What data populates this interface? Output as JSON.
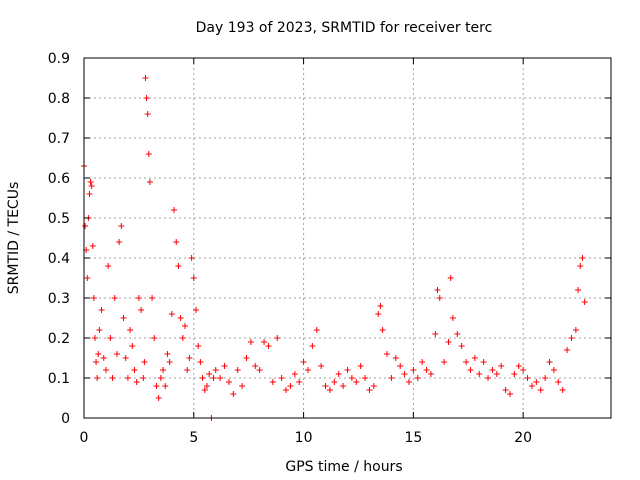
{
  "chart_data": {
    "type": "scatter",
    "title": "Day 193 of 2023, SRMTID for receiver terc",
    "xlabel": "GPS time / hours",
    "ylabel": "SRMTID / TECUs",
    "xlim": [
      0,
      24
    ],
    "ylim": [
      0,
      0.9
    ],
    "xticks": [
      0,
      5,
      10,
      15,
      20
    ],
    "yticks": [
      0,
      0.1,
      0.2,
      0.3,
      0.4,
      0.5,
      0.6,
      0.7,
      0.8,
      0.9
    ],
    "xtick_labels": [
      "0",
      "5",
      "10",
      "15",
      "20"
    ],
    "ytick_labels": [
      "0",
      "0.1",
      "0.2",
      "0.3",
      "0.4",
      "0.5",
      "0.6",
      "0.7",
      "0.8",
      "0.9"
    ],
    "grid": true,
    "marker": "+",
    "color": "#ff0000",
    "series": [
      {
        "name": "SRMTID",
        "x": [
          0.0,
          0.05,
          0.1,
          0.15,
          0.2,
          0.25,
          0.3,
          0.35,
          0.4,
          0.45,
          0.5,
          0.55,
          0.6,
          0.65,
          0.7,
          0.8,
          0.9,
          1.0,
          1.1,
          1.2,
          1.3,
          1.4,
          1.5,
          1.6,
          1.7,
          1.8,
          1.9,
          2.0,
          2.1,
          2.2,
          2.3,
          2.4,
          2.5,
          2.6,
          2.7,
          2.75,
          2.8,
          2.85,
          2.9,
          2.95,
          3.0,
          3.1,
          3.2,
          3.3,
          3.4,
          3.5,
          3.6,
          3.7,
          3.8,
          3.9,
          4.0,
          4.1,
          4.2,
          4.3,
          4.4,
          4.5,
          4.6,
          4.7,
          4.8,
          4.9,
          5.0,
          5.1,
          5.2,
          5.3,
          5.4,
          5.5,
          5.6,
          5.7,
          5.8,
          5.9,
          6.0,
          6.2,
          6.4,
          6.6,
          6.8,
          7.0,
          7.2,
          7.4,
          7.6,
          7.8,
          8.0,
          8.2,
          8.4,
          8.6,
          8.8,
          9.0,
          9.2,
          9.4,
          9.6,
          9.8,
          10.0,
          10.2,
          10.4,
          10.6,
          10.8,
          11.0,
          11.2,
          11.4,
          11.6,
          11.8,
          12.0,
          12.2,
          12.4,
          12.6,
          12.8,
          13.0,
          13.2,
          13.4,
          13.5,
          13.6,
          13.8,
          14.0,
          14.2,
          14.4,
          14.6,
          14.8,
          15.0,
          15.2,
          15.4,
          15.6,
          15.8,
          16.0,
          16.1,
          16.2,
          16.4,
          16.6,
          16.7,
          16.8,
          17.0,
          17.2,
          17.4,
          17.6,
          17.8,
          18.0,
          18.2,
          18.4,
          18.6,
          18.8,
          19.0,
          19.2,
          19.4,
          19.6,
          19.8,
          20.0,
          20.2,
          20.4,
          20.6,
          20.8,
          21.0,
          21.2,
          21.4,
          21.6,
          21.8,
          22.0,
          22.2,
          22.4,
          22.5,
          22.6,
          22.7,
          22.8
        ],
        "y": [
          0.63,
          0.48,
          0.42,
          0.35,
          0.5,
          0.56,
          0.59,
          0.58,
          0.43,
          0.3,
          0.2,
          0.14,
          0.1,
          0.16,
          0.22,
          0.27,
          0.15,
          0.12,
          0.38,
          0.2,
          0.1,
          0.3,
          0.16,
          0.44,
          0.48,
          0.25,
          0.15,
          0.1,
          0.22,
          0.18,
          0.12,
          0.09,
          0.3,
          0.27,
          0.1,
          0.14,
          0.85,
          0.8,
          0.76,
          0.66,
          0.59,
          0.3,
          0.2,
          0.08,
          0.05,
          0.1,
          0.12,
          0.08,
          0.16,
          0.14,
          0.26,
          0.52,
          0.44,
          0.38,
          0.25,
          0.2,
          0.23,
          0.12,
          0.15,
          0.4,
          0.35,
          0.27,
          0.18,
          0.14,
          0.1,
          0.07,
          0.08,
          0.11,
          0.0,
          0.1,
          0.12,
          0.1,
          0.13,
          0.09,
          0.06,
          0.12,
          0.08,
          0.15,
          0.19,
          0.13,
          0.12,
          0.19,
          0.18,
          0.09,
          0.2,
          0.1,
          0.07,
          0.08,
          0.11,
          0.09,
          0.14,
          0.12,
          0.18,
          0.22,
          0.13,
          0.08,
          0.07,
          0.09,
          0.11,
          0.08,
          0.12,
          0.1,
          0.09,
          0.13,
          0.1,
          0.07,
          0.08,
          0.26,
          0.28,
          0.22,
          0.16,
          0.1,
          0.15,
          0.13,
          0.11,
          0.09,
          0.12,
          0.1,
          0.14,
          0.12,
          0.11,
          0.21,
          0.32,
          0.3,
          0.14,
          0.19,
          0.35,
          0.25,
          0.21,
          0.18,
          0.14,
          0.12,
          0.15,
          0.11,
          0.14,
          0.1,
          0.12,
          0.11,
          0.13,
          0.07,
          0.06,
          0.11,
          0.13,
          0.12,
          0.1,
          0.08,
          0.09,
          0.07,
          0.1,
          0.14,
          0.12,
          0.09,
          0.07,
          0.17,
          0.2,
          0.22,
          0.32,
          0.38,
          0.4,
          0.29
        ]
      }
    ]
  }
}
